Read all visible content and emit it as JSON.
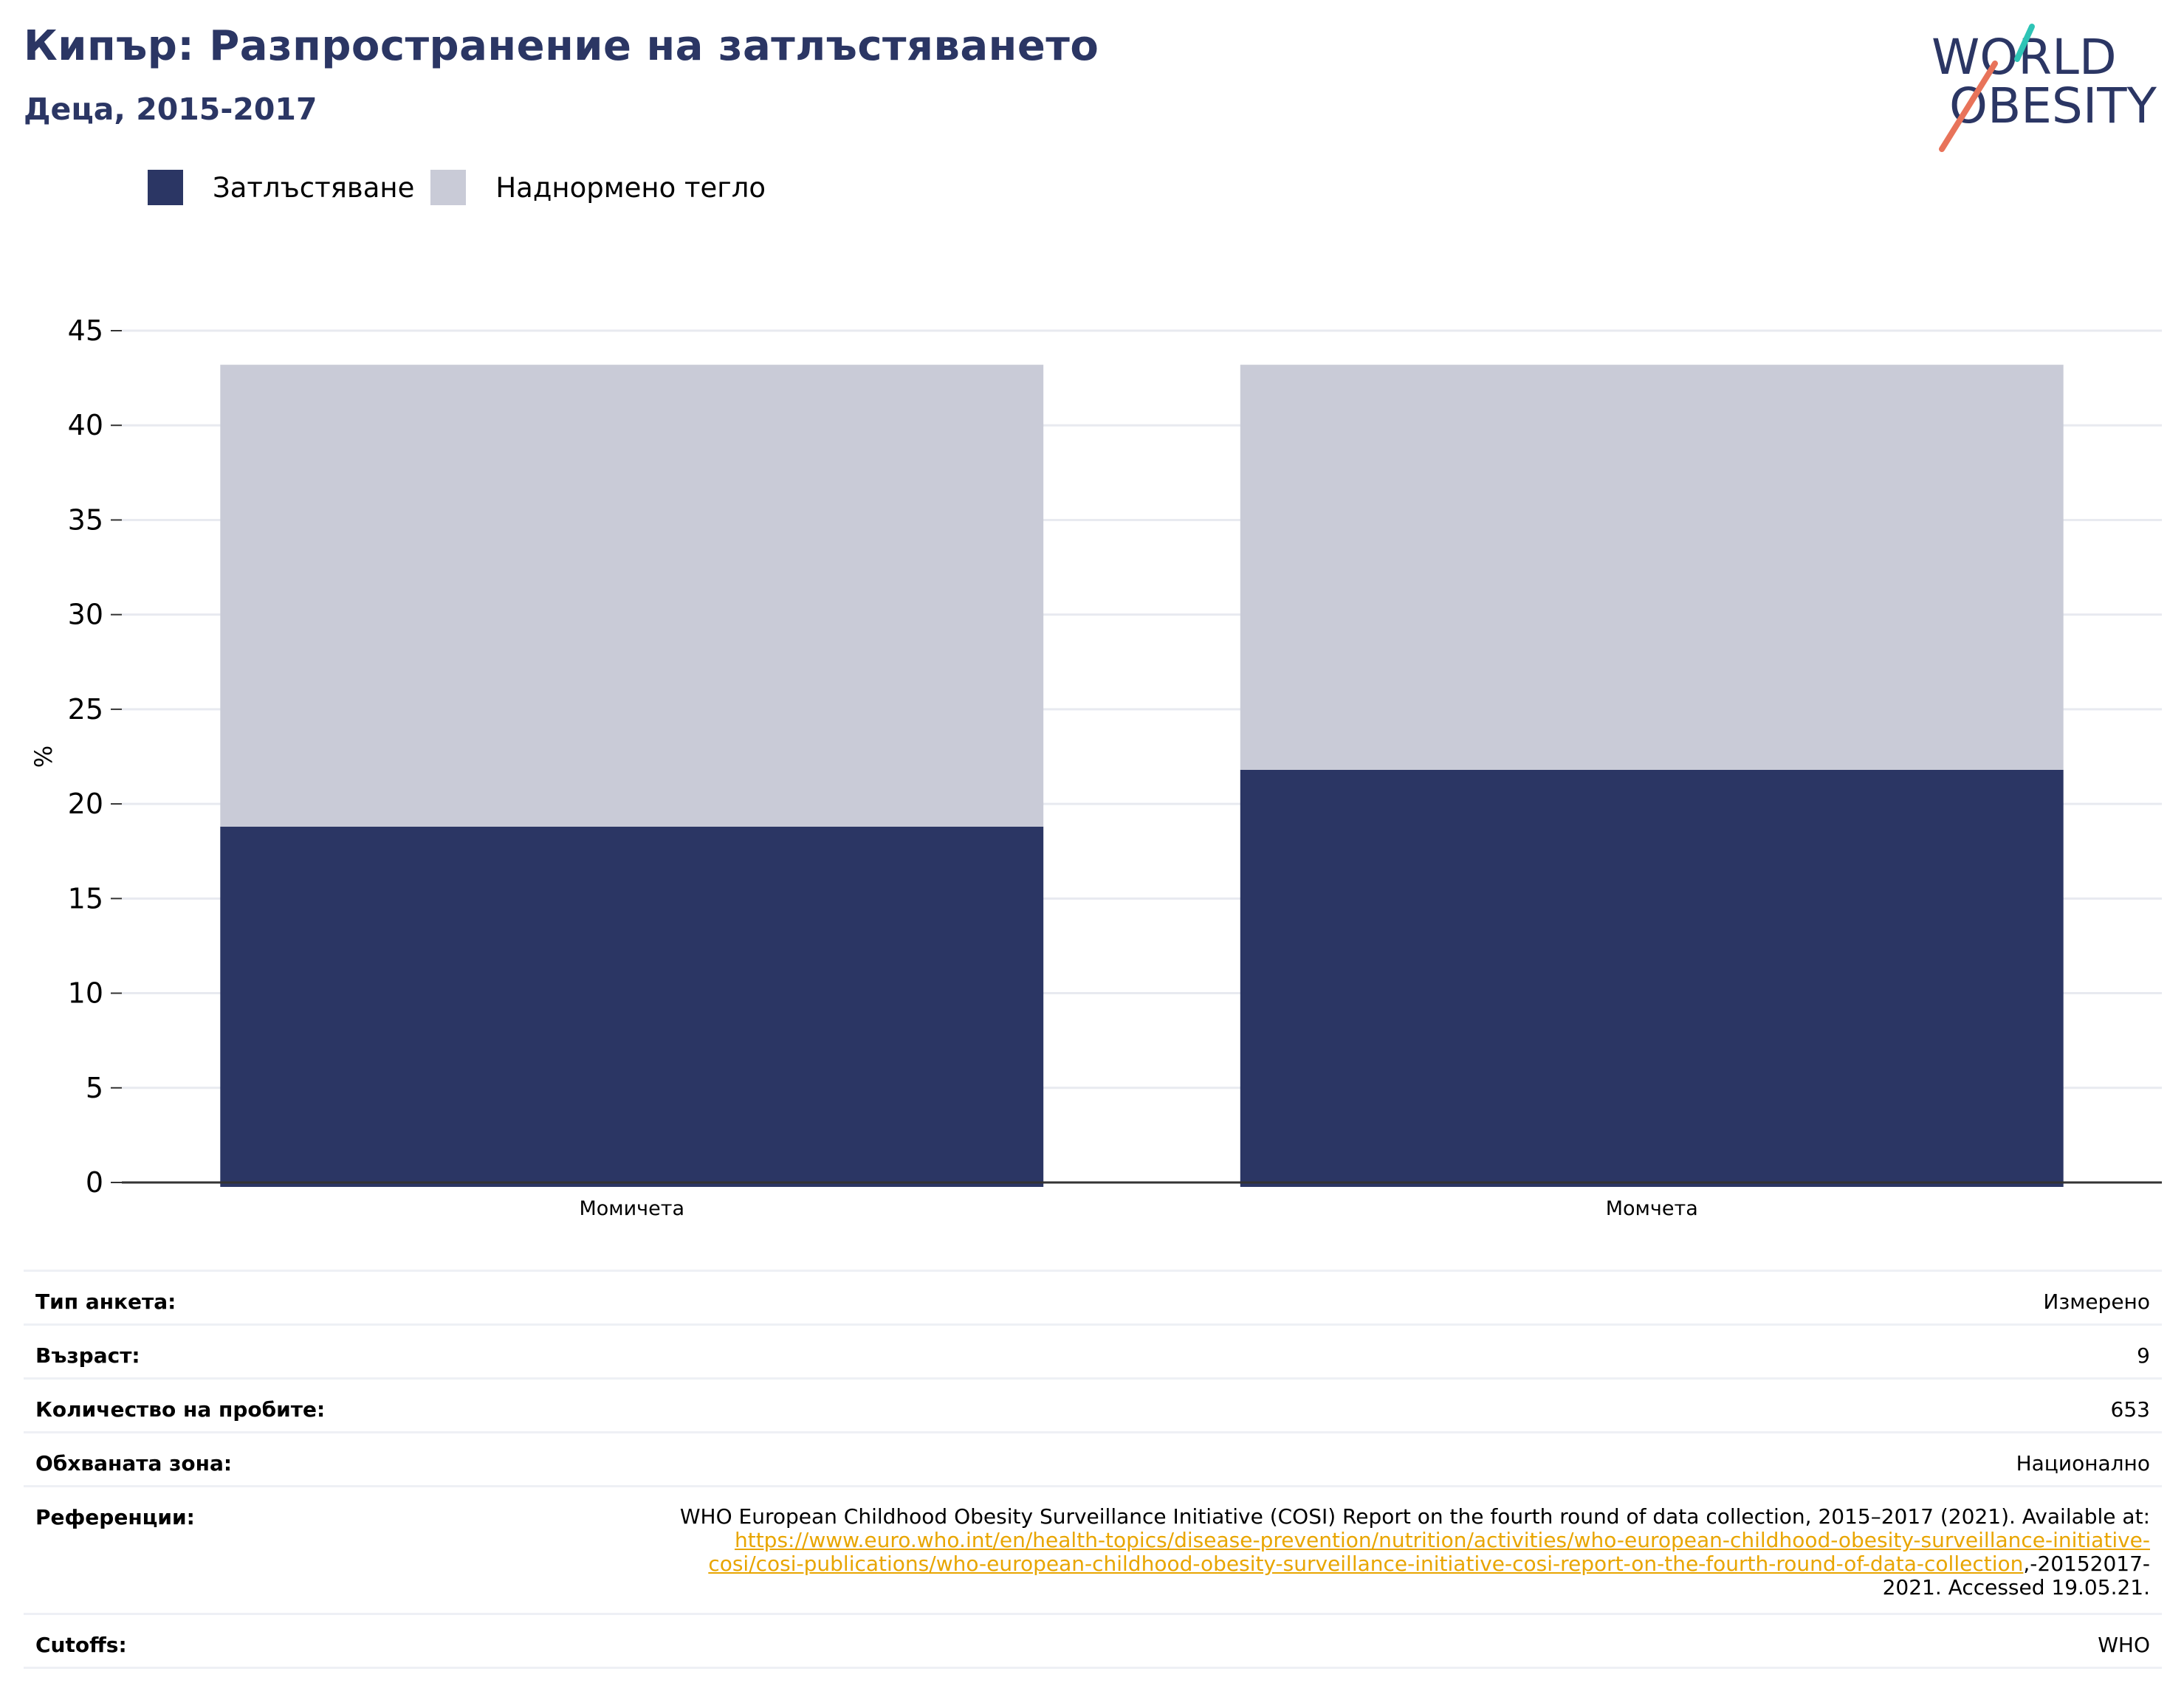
{
  "header": {
    "title": "Кипър: Разпространение на затлъстяването",
    "subtitle": "Деца, 2015-2017"
  },
  "logo": {
    "line1": "WORLD",
    "line2": "OBESITY",
    "colors": {
      "text": "#2b3664",
      "teal": "#2ec4b6",
      "coral": "#e8735a"
    }
  },
  "legend": [
    {
      "label": "Затлъстяване",
      "color": "#2b3664"
    },
    {
      "label": "Наднормено тегло",
      "color": "#c9cbd7"
    }
  ],
  "chart_data": {
    "type": "bar",
    "stacked": true,
    "categories": [
      "Момичета",
      "Момчета"
    ],
    "series": [
      {
        "name": "Затлъстяване",
        "values": [
          18.8,
          21.8
        ],
        "color": "#2b3664"
      },
      {
        "name": "Наднормено тегло",
        "values": [
          24.4,
          21.4
        ],
        "color": "#c9cbd7"
      }
    ],
    "ylabel": "%",
    "ylim": [
      0,
      45
    ],
    "yticks": [
      0,
      5,
      10,
      15,
      20,
      25,
      30,
      35,
      40,
      45
    ],
    "grid": true
  },
  "info": {
    "survey_type": {
      "label": "Тип анкета:",
      "value": "Измерено"
    },
    "age": {
      "label": "Възраст:",
      "value": "9"
    },
    "sample_size": {
      "label": "Количество на пробите:",
      "value": "653"
    },
    "area": {
      "label": "Обхваната зона:",
      "value": "Национално"
    },
    "references": {
      "label": "Референции:",
      "text_before": "WHO European Childhood Obesity Surveillance Initiative (COSI) Report on the fourth round of data collection, 2015–2017 (2021). Available at:",
      "link_line1": "https://www.euro.who.int/en/health-topics/disease-prevention/nutrition/activities/who-european-childhood-obesity-surveillance-initiative-",
      "link_line2": "cosi/cosi-publications/who-european-childhood-obesity-surveillance-initiative-cosi-report-on-the-fourth-round-of-data-collection",
      "text_after1": ",-20152017-",
      "text_after2": "2021. Accessed 19.05.21."
    },
    "cutoffs": {
      "label": "Cutoffs:",
      "value": "WHO"
    }
  }
}
